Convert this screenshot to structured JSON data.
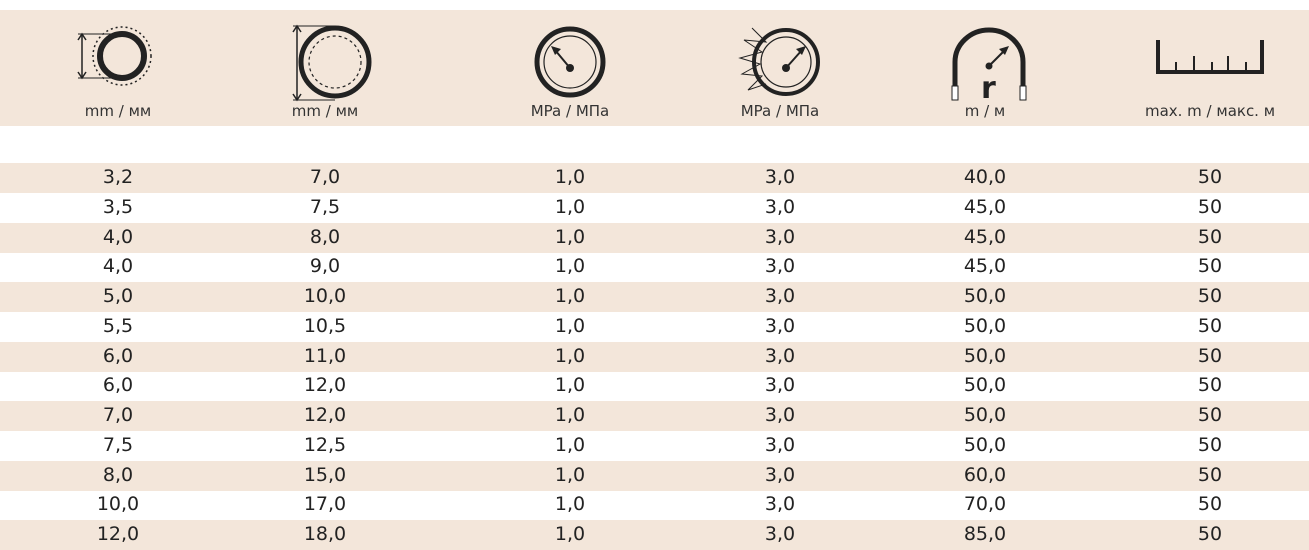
{
  "table": {
    "header": [
      "mm / мм",
      "mm / мм",
      "MPa / МПа",
      "MPa / МПа",
      "m / м",
      "max. m / макс. м"
    ],
    "rows": [
      [
        "3,2",
        "7,0",
        "1,0",
        "3,0",
        "40,0",
        "50"
      ],
      [
        "3,5",
        "7,5",
        "1,0",
        "3,0",
        "45,0",
        "50"
      ],
      [
        "4,0",
        "8,0",
        "1,0",
        "3,0",
        "45,0",
        "50"
      ],
      [
        "4,0",
        "9,0",
        "1,0",
        "3,0",
        "45,0",
        "50"
      ],
      [
        "5,0",
        "10,0",
        "1,0",
        "3,0",
        "50,0",
        "50"
      ],
      [
        "5,5",
        "10,5",
        "1,0",
        "3,0",
        "50,0",
        "50"
      ],
      [
        "6,0",
        "11,0",
        "1,0",
        "3,0",
        "50,0",
        "50"
      ],
      [
        "6,0",
        "12,0",
        "1,0",
        "3,0",
        "50,0",
        "50"
      ],
      [
        "7,0",
        "12,0",
        "1,0",
        "3,0",
        "50,0",
        "50"
      ],
      [
        "7,5",
        "12,5",
        "1,0",
        "3,0",
        "50,0",
        "50"
      ],
      [
        "8,0",
        "15,0",
        "1,0",
        "3,0",
        "60,0",
        "50"
      ],
      [
        "10,0",
        "17,0",
        "1,0",
        "3,0",
        "70,0",
        "50"
      ],
      [
        "12,0",
        "18,0",
        "1,0",
        "3,0",
        "85,0",
        "50"
      ]
    ]
  }
}
